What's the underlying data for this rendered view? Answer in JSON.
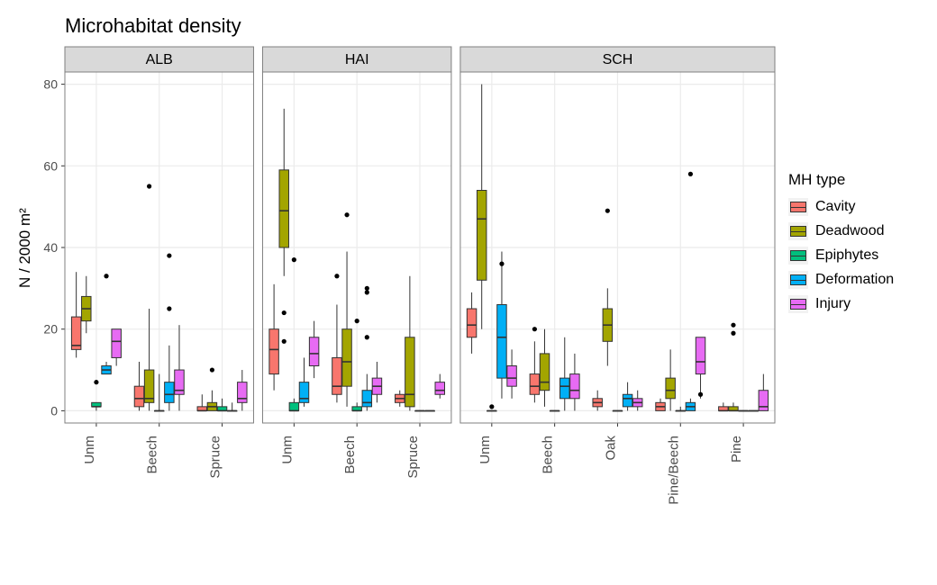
{
  "title": "Microhabitat density",
  "ylab": "N / 2000 m²",
  "legend_title": "MH type",
  "chart_type": "boxplot",
  "background_color": "#ffffff",
  "grid_color": "#ebebeb",
  "strip_background": "#d9d9d9",
  "panel_border_color": "#7f7f7f",
  "ylim": [
    -3,
    83
  ],
  "ytick_step": 20,
  "yticks": [
    0,
    20,
    40,
    60,
    80
  ],
  "box_border_color": "#333333",
  "box_width_rel": 0.15,
  "title_fontsize": 22,
  "label_fontsize": 17,
  "axis_fontsize": 14,
  "legend_fontsize": 16,
  "mh_types": [
    {
      "name": "Cavity",
      "color": "#f8766d"
    },
    {
      "name": "Deadwood",
      "color": "#a3a500"
    },
    {
      "name": "Epiphytes",
      "color": "#00bf7d"
    },
    {
      "name": "Deformation",
      "color": "#00b0f6"
    },
    {
      "name": "Injury",
      "color": "#e76bf3"
    }
  ],
  "facets": [
    {
      "label": "ALB",
      "categories": [
        "Unm",
        "Beech",
        "Spruce"
      ],
      "groups": {
        "Unm": {
          "Cavity": {
            "min": 13,
            "q1": 15,
            "med": 16,
            "q3": 23,
            "max": 34,
            "out": []
          },
          "Deadwood": {
            "min": 19,
            "q1": 22,
            "med": 25,
            "q3": 28,
            "max": 33,
            "out": []
          },
          "Epiphytes": {
            "min": 0,
            "q1": 1,
            "med": 1,
            "q3": 2,
            "max": 2,
            "out": [
              7
            ]
          },
          "Deformation": {
            "min": 9,
            "q1": 9,
            "med": 10,
            "q3": 11,
            "max": 12,
            "out": [
              33
            ]
          },
          "Injury": {
            "min": 11,
            "q1": 13,
            "med": 17,
            "q3": 20,
            "max": 20,
            "out": []
          }
        },
        "Beech": {
          "Cavity": {
            "min": 0,
            "q1": 1,
            "med": 3,
            "q3": 6,
            "max": 12,
            "out": []
          },
          "Deadwood": {
            "min": 0,
            "q1": 2,
            "med": 3,
            "q3": 10,
            "max": 25,
            "out": [
              55
            ]
          },
          "Epiphytes": {
            "min": 0,
            "q1": 0,
            "med": 0,
            "q3": 0,
            "max": 9,
            "out": []
          },
          "Deformation": {
            "min": 0,
            "q1": 2,
            "med": 4,
            "q3": 7,
            "max": 16,
            "out": [
              38,
              25
            ]
          },
          "Injury": {
            "min": 0,
            "q1": 4,
            "med": 5,
            "q3": 10,
            "max": 21,
            "out": []
          }
        },
        "Spruce": {
          "Cavity": {
            "min": 0,
            "q1": 0,
            "med": 0,
            "q3": 1,
            "max": 4,
            "out": []
          },
          "Deadwood": {
            "min": 0,
            "q1": 0,
            "med": 1,
            "q3": 2,
            "max": 5,
            "out": [
              10
            ]
          },
          "Epiphytes": {
            "min": 0,
            "q1": 0,
            "med": 0,
            "q3": 1,
            "max": 3,
            "out": []
          },
          "Deformation": {
            "min": 0,
            "q1": 0,
            "med": 0,
            "q3": 0,
            "max": 2,
            "out": []
          },
          "Injury": {
            "min": 0,
            "q1": 2,
            "med": 3,
            "q3": 7,
            "max": 10,
            "out": []
          }
        }
      }
    },
    {
      "label": "HAI",
      "categories": [
        "Unm",
        "Beech",
        "Spruce"
      ],
      "groups": {
        "Unm": {
          "Cavity": {
            "min": 5,
            "q1": 9,
            "med": 15,
            "q3": 20,
            "max": 31,
            "out": []
          },
          "Deadwood": {
            "min": 33,
            "q1": 40,
            "med": 49,
            "q3": 59,
            "max": 74,
            "out": [
              17,
              24
            ]
          },
          "Epiphytes": {
            "min": 0,
            "q1": 0,
            "med": 0,
            "q3": 2,
            "max": 3,
            "out": [
              37
            ]
          },
          "Deformation": {
            "min": 1,
            "q1": 2,
            "med": 3,
            "q3": 7,
            "max": 13,
            "out": []
          },
          "Injury": {
            "min": 8,
            "q1": 11,
            "med": 14,
            "q3": 18,
            "max": 22,
            "out": []
          }
        },
        "Beech": {
          "Cavity": {
            "min": 2,
            "q1": 4,
            "med": 6,
            "q3": 13,
            "max": 26,
            "out": [
              33
            ]
          },
          "Deadwood": {
            "min": 1,
            "q1": 6,
            "med": 12,
            "q3": 20,
            "max": 39,
            "out": [
              48
            ]
          },
          "Epiphytes": {
            "min": 0,
            "q1": 0,
            "med": 0,
            "q3": 1,
            "max": 2,
            "out": [
              22
            ]
          },
          "Deformation": {
            "min": 0,
            "q1": 1,
            "med": 2,
            "q3": 5,
            "max": 9,
            "out": [
              18,
              29,
              30
            ]
          },
          "Injury": {
            "min": 2,
            "q1": 4,
            "med": 6,
            "q3": 8,
            "max": 12,
            "out": []
          }
        },
        "Spruce": {
          "Cavity": {
            "min": 1,
            "q1": 2,
            "med": 3,
            "q3": 4,
            "max": 5,
            "out": []
          },
          "Deadwood": {
            "min": 0,
            "q1": 1,
            "med": 4,
            "q3": 18,
            "max": 33,
            "out": []
          },
          "Epiphytes": {
            "min": 0,
            "q1": 0,
            "med": 0,
            "q3": 0,
            "max": 0,
            "out": []
          },
          "Deformation": {
            "min": 0,
            "q1": 0,
            "med": 0,
            "q3": 0,
            "max": 0,
            "out": []
          },
          "Injury": {
            "min": 3,
            "q1": 4,
            "med": 5,
            "q3": 7,
            "max": 9,
            "out": []
          }
        }
      }
    },
    {
      "label": "SCH",
      "categories": [
        "Unm",
        "Beech",
        "Oak",
        "Pine/Beech",
        "Pine"
      ],
      "groups": {
        "Unm": {
          "Cavity": {
            "min": 14,
            "q1": 18,
            "med": 21,
            "q3": 25,
            "max": 29,
            "out": []
          },
          "Deadwood": {
            "min": 20,
            "q1": 32,
            "med": 47,
            "q3": 54,
            "max": 80,
            "out": []
          },
          "Epiphytes": {
            "min": 0,
            "q1": 0,
            "med": 0,
            "q3": 0,
            "max": 0,
            "out": [
              1
            ]
          },
          "Deformation": {
            "min": 3,
            "q1": 8,
            "med": 18,
            "q3": 26,
            "max": 39,
            "out": [
              36
            ]
          },
          "Injury": {
            "min": 3,
            "q1": 6,
            "med": 8,
            "q3": 11,
            "max": 15,
            "out": []
          }
        },
        "Beech": {
          "Cavity": {
            "min": 2,
            "q1": 4,
            "med": 6,
            "q3": 9,
            "max": 17,
            "out": [
              20
            ]
          },
          "Deadwood": {
            "min": 1,
            "q1": 5,
            "med": 7,
            "q3": 14,
            "max": 20,
            "out": []
          },
          "Epiphytes": {
            "min": 0,
            "q1": 0,
            "med": 0,
            "q3": 0,
            "max": 0,
            "out": []
          },
          "Deformation": {
            "min": 0,
            "q1": 3,
            "med": 6,
            "q3": 8,
            "max": 18,
            "out": []
          },
          "Injury": {
            "min": 0,
            "q1": 3,
            "med": 5,
            "q3": 9,
            "max": 14,
            "out": []
          }
        },
        "Oak": {
          "Cavity": {
            "min": 0,
            "q1": 1,
            "med": 2,
            "q3": 3,
            "max": 5,
            "out": []
          },
          "Deadwood": {
            "min": 11,
            "q1": 17,
            "med": 21,
            "q3": 25,
            "max": 30,
            "out": [
              49
            ]
          },
          "Epiphytes": {
            "min": 0,
            "q1": 0,
            "med": 0,
            "q3": 0,
            "max": 0,
            "out": []
          },
          "Deformation": {
            "min": 0,
            "q1": 1,
            "med": 3,
            "q3": 4,
            "max": 7,
            "out": []
          },
          "Injury": {
            "min": 0,
            "q1": 1,
            "med": 2,
            "q3": 3,
            "max": 5,
            "out": []
          }
        },
        "Pine/Beech": {
          "Cavity": {
            "min": 0,
            "q1": 0,
            "med": 1,
            "q3": 2,
            "max": 3,
            "out": []
          },
          "Deadwood": {
            "min": 0,
            "q1": 3,
            "med": 5,
            "q3": 8,
            "max": 15,
            "out": []
          },
          "Epiphytes": {
            "min": 0,
            "q1": 0,
            "med": 0,
            "q3": 0,
            "max": 1,
            "out": []
          },
          "Deformation": {
            "min": 0,
            "q1": 0,
            "med": 1,
            "q3": 2,
            "max": 3,
            "out": [
              58
            ]
          },
          "Injury": {
            "min": 3,
            "q1": 9,
            "med": 12,
            "q3": 18,
            "max": 18,
            "out": [
              4
            ]
          }
        },
        "Pine": {
          "Cavity": {
            "min": 0,
            "q1": 0,
            "med": 0,
            "q3": 1,
            "max": 2,
            "out": []
          },
          "Deadwood": {
            "min": 0,
            "q1": 0,
            "med": 0,
            "q3": 1,
            "max": 2,
            "out": [
              21,
              19
            ]
          },
          "Epiphytes": {
            "min": 0,
            "q1": 0,
            "med": 0,
            "q3": 0,
            "max": 0,
            "out": []
          },
          "Deformation": {
            "min": 0,
            "q1": 0,
            "med": 0,
            "q3": 0,
            "max": 0,
            "out": []
          },
          "Injury": {
            "min": 0,
            "q1": 0,
            "med": 1,
            "q3": 5,
            "max": 9,
            "out": []
          }
        }
      }
    }
  ]
}
